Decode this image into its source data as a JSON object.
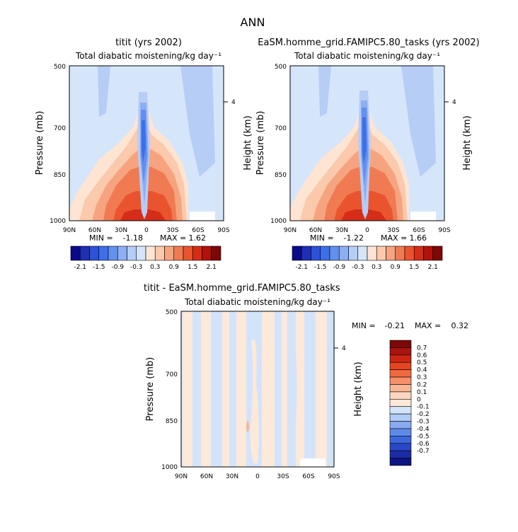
{
  "figure": {
    "title": "ANN"
  },
  "labels": {
    "min_label": "MIN =",
    "max_label": "MAX ="
  },
  "chart_data": [
    {
      "type": "heatmap",
      "id": "panel-left",
      "title": "titit (yrs 2002)",
      "subtitle": "Total diabatic moistening/kg day⁻¹",
      "xlabel": "",
      "ylabel": "Pressure (mb)",
      "ylabel_right": "Height (km)",
      "x_ticks": [
        "90N",
        "60N",
        "30N",
        "0",
        "30S",
        "60S",
        "90S"
      ],
      "y_ticks": [
        "500",
        "700",
        "850",
        "1000"
      ],
      "y_right_ticks": [
        "4"
      ],
      "ylim": [
        1000,
        500
      ],
      "min": "-1.18",
      "max": "1.62",
      "colorbar_ticks": [
        "-2.1",
        "-1.5",
        "-0.9",
        "-0.3",
        "0.3",
        "0.9",
        "1.5",
        "2.1"
      ]
    },
    {
      "type": "heatmap",
      "id": "panel-right",
      "title": "EaSM.homme_grid.FAMIPC5.80_tasks (yrs 2002)",
      "subtitle": "Total diabatic moistening/kg day⁻¹",
      "xlabel": "",
      "ylabel": "Pressure (mb)",
      "ylabel_right": "Height (km)",
      "x_ticks": [
        "90N",
        "60N",
        "30N",
        "0",
        "30S",
        "60S",
        "90S"
      ],
      "y_ticks": [
        "500",
        "700",
        "850",
        "1000"
      ],
      "y_right_ticks": [
        "4"
      ],
      "ylim": [
        1000,
        500
      ],
      "min": "-1.22",
      "max": "1.66",
      "colorbar_ticks": [
        "-2.1",
        "-1.5",
        "-0.9",
        "-0.3",
        "0.3",
        "0.9",
        "1.5",
        "2.1"
      ]
    },
    {
      "type": "heatmap",
      "id": "panel-diff",
      "title": "titit - EaSM.homme_grid.FAMIPC5.80_tasks",
      "subtitle": "Total diabatic moistening/kg day⁻¹",
      "xlabel": "",
      "ylabel": "Pressure (mb)",
      "ylabel_right": "Height (km)",
      "x_ticks": [
        "90N",
        "60N",
        "30N",
        "0",
        "30S",
        "60S",
        "90S"
      ],
      "y_ticks": [
        "500",
        "700",
        "850",
        "1000"
      ],
      "y_right_ticks": [
        "4"
      ],
      "ylim": [
        1000,
        500
      ],
      "min": "-0.21",
      "max": "0.32",
      "colorbar_ticks": [
        "0.7",
        "0.6",
        "0.5",
        "0.4",
        "0.3",
        "0.2",
        "0.1",
        "0",
        "-0.1",
        "-0.2",
        "-0.3",
        "-0.4",
        "-0.5",
        "-0.6",
        "-0.7"
      ]
    }
  ],
  "colors": {
    "main_scale": [
      "#0a0a8c",
      "#1e2fb4",
      "#2c52d8",
      "#3d6fe8",
      "#6190ee",
      "#8eaef2",
      "#b6cdf6",
      "#d5e6fb",
      "#fde4d3",
      "#fbc9ab",
      "#f6a47f",
      "#f07b52",
      "#e9542e",
      "#d52d18",
      "#b0120c",
      "#7e0707"
    ],
    "diff_scale": [
      "#7e0707",
      "#a8140f",
      "#cb2614",
      "#e64520",
      "#f0693f",
      "#f59068",
      "#f8b595",
      "#fbd5bd",
      "#fde9da",
      "#d3e4fa",
      "#b0cbf4",
      "#8aaaf0",
      "#5f8ae9",
      "#3d66de",
      "#2a47c8",
      "#1b2ca6",
      "#0d1485"
    ]
  }
}
